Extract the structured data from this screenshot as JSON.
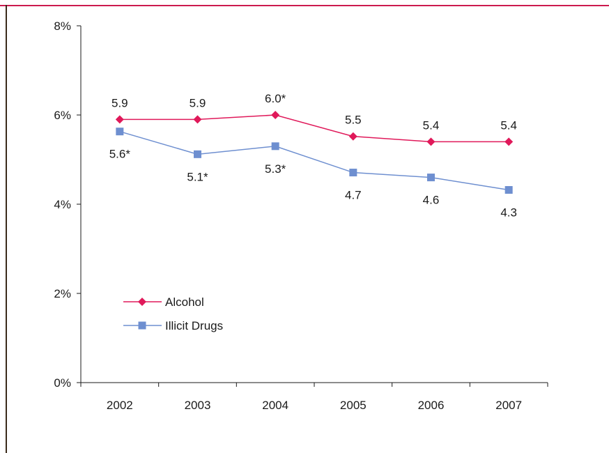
{
  "colors": {
    "frame_top": "#cc1a4e",
    "frame_left": "#3a2a1a",
    "axis": "#1a1a1a"
  },
  "chart_data": {
    "type": "line",
    "categories": [
      "2002",
      "2003",
      "2004",
      "2005",
      "2006",
      "2007"
    ],
    "ylim": [
      0,
      8
    ],
    "yticks": [
      0,
      2,
      4,
      6,
      8
    ],
    "ytick_labels": [
      "0%",
      "2%",
      "4%",
      "6%",
      "8%"
    ],
    "grid": false,
    "legend_position": "lower-left",
    "series": [
      {
        "name": "Alcohol",
        "color": "#e0195a",
        "marker": "diamond",
        "values": [
          5.9,
          5.9,
          6.0,
          5.52,
          5.4,
          5.4
        ],
        "labels": [
          "5.9",
          "5.9",
          "6.0*",
          "5.5",
          "5.4",
          "5.4"
        ],
        "label_placement": "above"
      },
      {
        "name": "Illicit Drugs",
        "color": "#6e8fd0",
        "marker": "square",
        "values": [
          5.63,
          5.12,
          5.3,
          4.71,
          4.6,
          4.32
        ],
        "labels": [
          "5.6*",
          "5.1*",
          "5.3*",
          "4.7",
          "4.6",
          "4.3"
        ],
        "label_placement": "below"
      }
    ]
  }
}
